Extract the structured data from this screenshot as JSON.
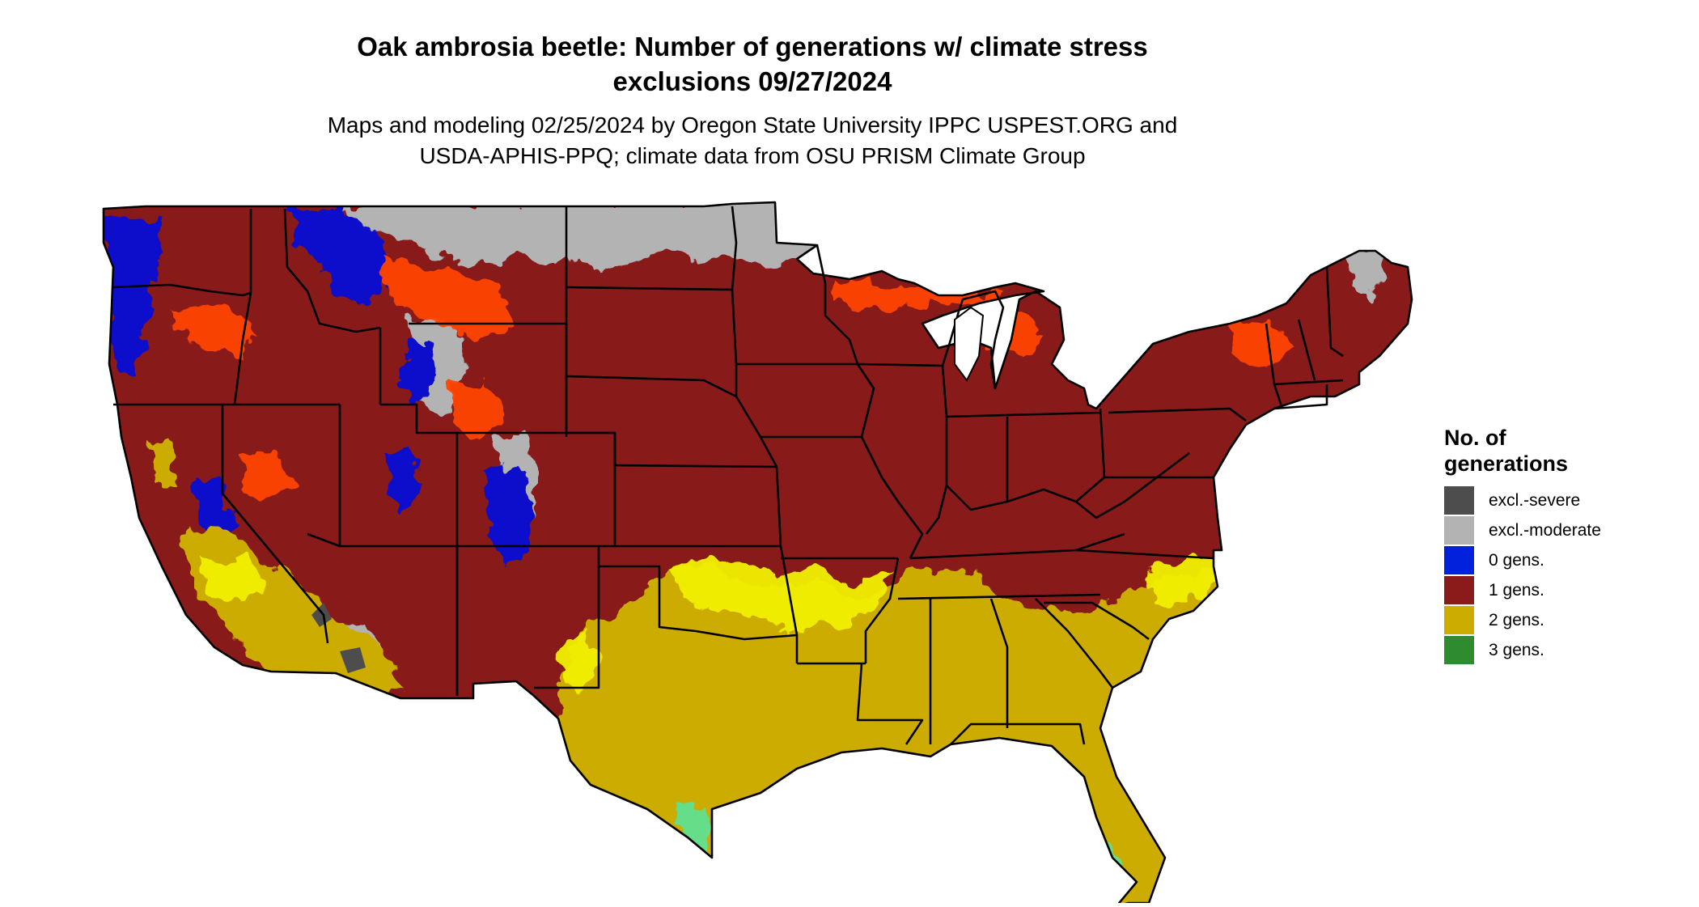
{
  "title": {
    "line1": "Oak ambrosia beetle: Number of generations w/ climate stress",
    "line2": "exclusions 09/27/2024"
  },
  "subtitle": {
    "line1": "Maps and modeling 02/25/2024 by Oregon State University IPPC USPEST.ORG and",
    "line2": "USDA-APHIS-PPQ; climate data from OSU PRISM Climate Group"
  },
  "legend": {
    "title_line1": "No. of",
    "title_line2": "generations",
    "items": [
      {
        "label": "excl.-severe",
        "color": "#4d4d4d"
      },
      {
        "label": "excl.-moderate",
        "color": "#b3b3b3"
      },
      {
        "label": "0 gens.",
        "color": "#0022dd"
      },
      {
        "label": "1 gens.",
        "color": "#8b1a1a"
      },
      {
        "label": "2 gens.",
        "color": "#ccac00"
      },
      {
        "label": "3 gens.",
        "color": "#2e8b2e"
      }
    ]
  },
  "map": {
    "colors": {
      "one_gen": "#881a1a",
      "two_gen": "#ccac00",
      "yellow_bright": "#f2f000",
      "orange": "#ff4400",
      "blue": "#0a0acc",
      "grey": "#b3b3b3",
      "dark_grey": "#4d4d4d",
      "light_green": "#66dd88",
      "dark_green": "#2e8b2e",
      "border": "#000000"
    }
  }
}
